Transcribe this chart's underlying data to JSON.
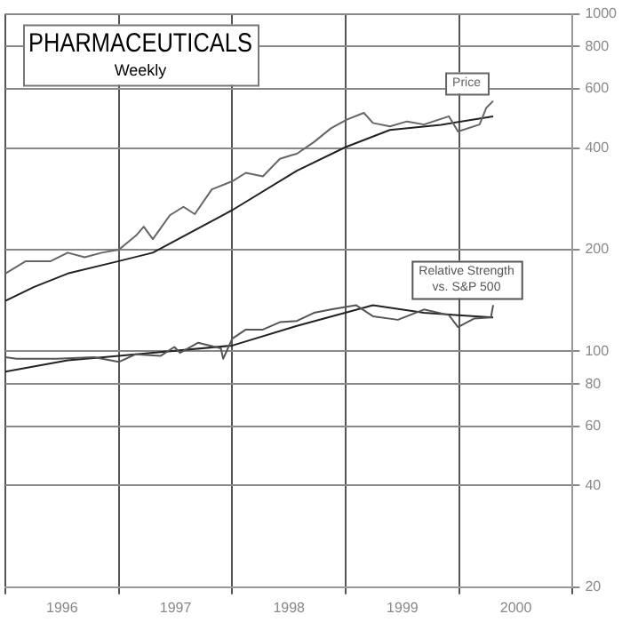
{
  "chart_data": {
    "type": "line",
    "title": "PHARMACEUTICALS",
    "subtitle": "Weekly",
    "log": "y",
    "grid": true,
    "legend": false,
    "marker": "none",
    "xlim": [
      1996,
      2001
    ],
    "xticks": [
      {
        "value": 1996,
        "label": null
      },
      {
        "value": 1996.5,
        "label": "1996"
      },
      {
        "value": 1997,
        "label": null
      },
      {
        "value": 1997.5,
        "label": "1997"
      },
      {
        "value": 1998,
        "label": null
      },
      {
        "value": 1998.5,
        "label": "1998"
      },
      {
        "value": 1999,
        "label": null
      },
      {
        "value": 1999.5,
        "label": "1999"
      },
      {
        "value": 2000,
        "label": null
      },
      {
        "value": 2000.5,
        "label": "2000"
      },
      {
        "value": 2001,
        "label": null
      }
    ],
    "ylim": [
      20,
      1000
    ],
    "yticks": [
      20,
      40,
      60,
      80,
      100,
      200,
      400,
      600,
      800,
      1000
    ],
    "series": [
      {
        "name": "Price",
        "color": "#666666",
        "x": [
          1996,
          1996.18,
          1996.4,
          1996.55,
          1996.7,
          1996.85,
          1997,
          1997.15,
          1997.22,
          1997.3,
          1997.45,
          1997.57,
          1997.67,
          1997.82,
          1998,
          1998.12,
          1998.27,
          1998.42,
          1998.52,
          1998.57,
          1998.72,
          1998.87,
          1999.01,
          1999.16,
          1999.24,
          1999.39,
          1999.54,
          1999.69,
          1999.91,
          1999.99,
          2000.18,
          2000.24,
          2000.3
        ],
        "values": [
          170,
          185,
          185,
          196,
          190,
          196,
          200,
          220,
          234,
          215,
          253,
          268,
          255,
          302,
          319,
          338,
          330,
          372,
          381,
          385,
          417,
          458,
          486,
          509,
          475,
          464,
          480,
          470,
          497,
          448,
          470,
          527,
          552
        ]
      },
      {
        "color": "#222222",
        "x": [
          1996,
          1996.25,
          1996.55,
          1997,
          1997.3,
          1998,
          1998.57,
          1999,
          1999.39,
          1999.84,
          2000.3
        ],
        "values": [
          141,
          155,
          170,
          185,
          196,
          262,
          343,
          403,
          453,
          469,
          497
        ]
      },
      {
        "name": "Relative Strength vs. S&P 500",
        "color": "#555555",
        "x": [
          1996,
          1996.1,
          1996.45,
          1996.78,
          1997,
          1997.15,
          1997.37,
          1997.49,
          1997.54,
          1997.7,
          1997.9,
          1997.92,
          1998,
          1998.12,
          1998.27,
          1998.42,
          1998.57,
          1998.72,
          1998.87,
          1999.09,
          1999.24,
          1999.46,
          1999.69,
          1999.91,
          1999.99,
          2000.13,
          2000.28,
          2000.3
        ],
        "values": [
          96,
          95,
          95,
          96,
          93,
          98,
          97,
          103,
          99,
          106,
          102,
          95,
          109,
          116,
          116,
          122,
          123,
          130,
          133,
          137,
          127,
          124,
          133,
          128,
          118,
          125,
          126,
          137
        ]
      },
      {
        "color": "#222222",
        "x": [
          1996,
          1996.55,
          1997,
          1998,
          1998.57,
          1999.24,
          1999.69,
          2000.3
        ],
        "values": [
          87,
          94,
          97,
          104,
          119,
          137,
          130,
          126
        ]
      }
    ]
  }
}
